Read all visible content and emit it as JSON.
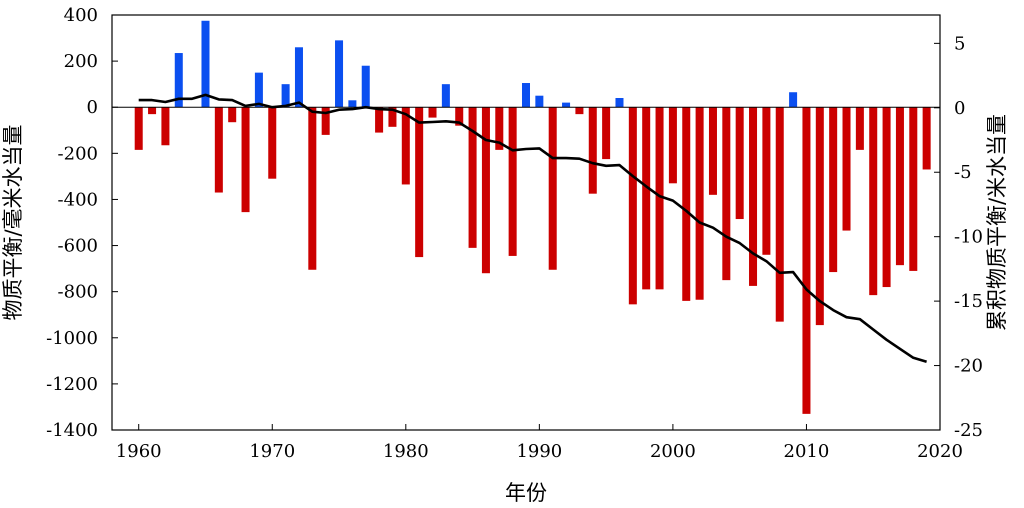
{
  "chart_data": {
    "type": "bar",
    "xlabel": "年份",
    "ylabel_left": "物质平衡/毫米水当量",
    "ylabel_right": "累积物质平衡/米水当量",
    "xlim": [
      1958,
      2020
    ],
    "ylim_left": [
      -1400,
      400
    ],
    "ylim_right": [
      -25,
      7.2
    ],
    "x_ticks": [
      1960,
      1970,
      1980,
      1990,
      2000,
      2010,
      2020
    ],
    "y_ticks_left": [
      400,
      200,
      0,
      -200,
      -400,
      -600,
      -800,
      -1000,
      -1200,
      -1400
    ],
    "y_ticks_right": [
      5,
      0,
      -5,
      -10,
      -15,
      -20,
      -25
    ],
    "colors": {
      "positive": "#0b4ff0",
      "negative": "#cc0000",
      "line": "#000000"
    },
    "series": [
      {
        "name": "",
        "kind": "bar",
        "axis": "left",
        "x": [
          1960,
          1961,
          1962,
          1963,
          1964,
          1965,
          1966,
          1967,
          1968,
          1969,
          1970,
          1971,
          1972,
          1973,
          1974,
          1975,
          1976,
          1977,
          1978,
          1979,
          1980,
          1981,
          1982,
          1983,
          1984,
          1985,
          1986,
          1987,
          1988,
          1989,
          1990,
          1991,
          1992,
          1993,
          1994,
          1995,
          1996,
          1997,
          1998,
          1999,
          2000,
          2001,
          2002,
          2003,
          2004,
          2005,
          2006,
          2007,
          2008,
          2009,
          2010,
          2011,
          2012,
          2013,
          2014,
          2015,
          2016,
          2017,
          2018,
          2019
        ],
        "values": [
          -185,
          -30,
          -165,
          235,
          0,
          375,
          -370,
          -65,
          -455,
          150,
          -310,
          100,
          260,
          -705,
          -120,
          290,
          30,
          180,
          -110,
          -85,
          -335,
          -650,
          -45,
          100,
          -80,
          -610,
          -720,
          -185,
          -645,
          105,
          50,
          -705,
          20,
          -30,
          -375,
          -225,
          40,
          -855,
          -790,
          -790,
          -330,
          -840,
          -835,
          -380,
          -750,
          -485,
          -775,
          -640,
          -930,
          65,
          -1330,
          -945,
          -715,
          -535,
          -185,
          -815,
          -780,
          -685,
          -710,
          -270
        ]
      },
      {
        "name": "",
        "kind": "line",
        "axis": "right",
        "x": [
          1960,
          1961,
          1962,
          1963,
          1964,
          1965,
          1966,
          1967,
          1968,
          1969,
          1970,
          1971,
          1972,
          1973,
          1974,
          1975,
          1976,
          1977,
          1978,
          1979,
          1980,
          1981,
          1982,
          1983,
          1984,
          1985,
          1986,
          1987,
          1988,
          1989,
          1990,
          1991,
          1992,
          1993,
          1994,
          1995,
          1996,
          1997,
          1998,
          1999,
          2000,
          2001,
          2002,
          2003,
          2004,
          2005,
          2006,
          2007,
          2008,
          2009,
          2010,
          2011,
          2012,
          2013,
          2014,
          2015,
          2016,
          2017,
          2018,
          2019
        ],
        "values": [
          0.6,
          0.6,
          0.45,
          0.7,
          0.7,
          1.0,
          0.65,
          0.6,
          0.15,
          0.3,
          0.05,
          0.15,
          0.4,
          -0.3,
          -0.4,
          -0.15,
          -0.1,
          0.05,
          -0.1,
          -0.15,
          -0.5,
          -1.15,
          -1.1,
          -1.05,
          -1.15,
          -1.8,
          -2.5,
          -2.7,
          -3.3,
          -3.2,
          -3.15,
          -3.9,
          -3.9,
          -3.95,
          -4.3,
          -4.5,
          -4.45,
          -5.3,
          -6.1,
          -6.85,
          -7.2,
          -8.0,
          -8.9,
          -9.3,
          -10.0,
          -10.5,
          -11.3,
          -11.9,
          -12.8,
          -12.75,
          -14.1,
          -15.0,
          -15.7,
          -16.25,
          -16.4,
          -17.2,
          -18.0,
          -18.7,
          -19.4,
          -19.7
        ]
      }
    ]
  }
}
